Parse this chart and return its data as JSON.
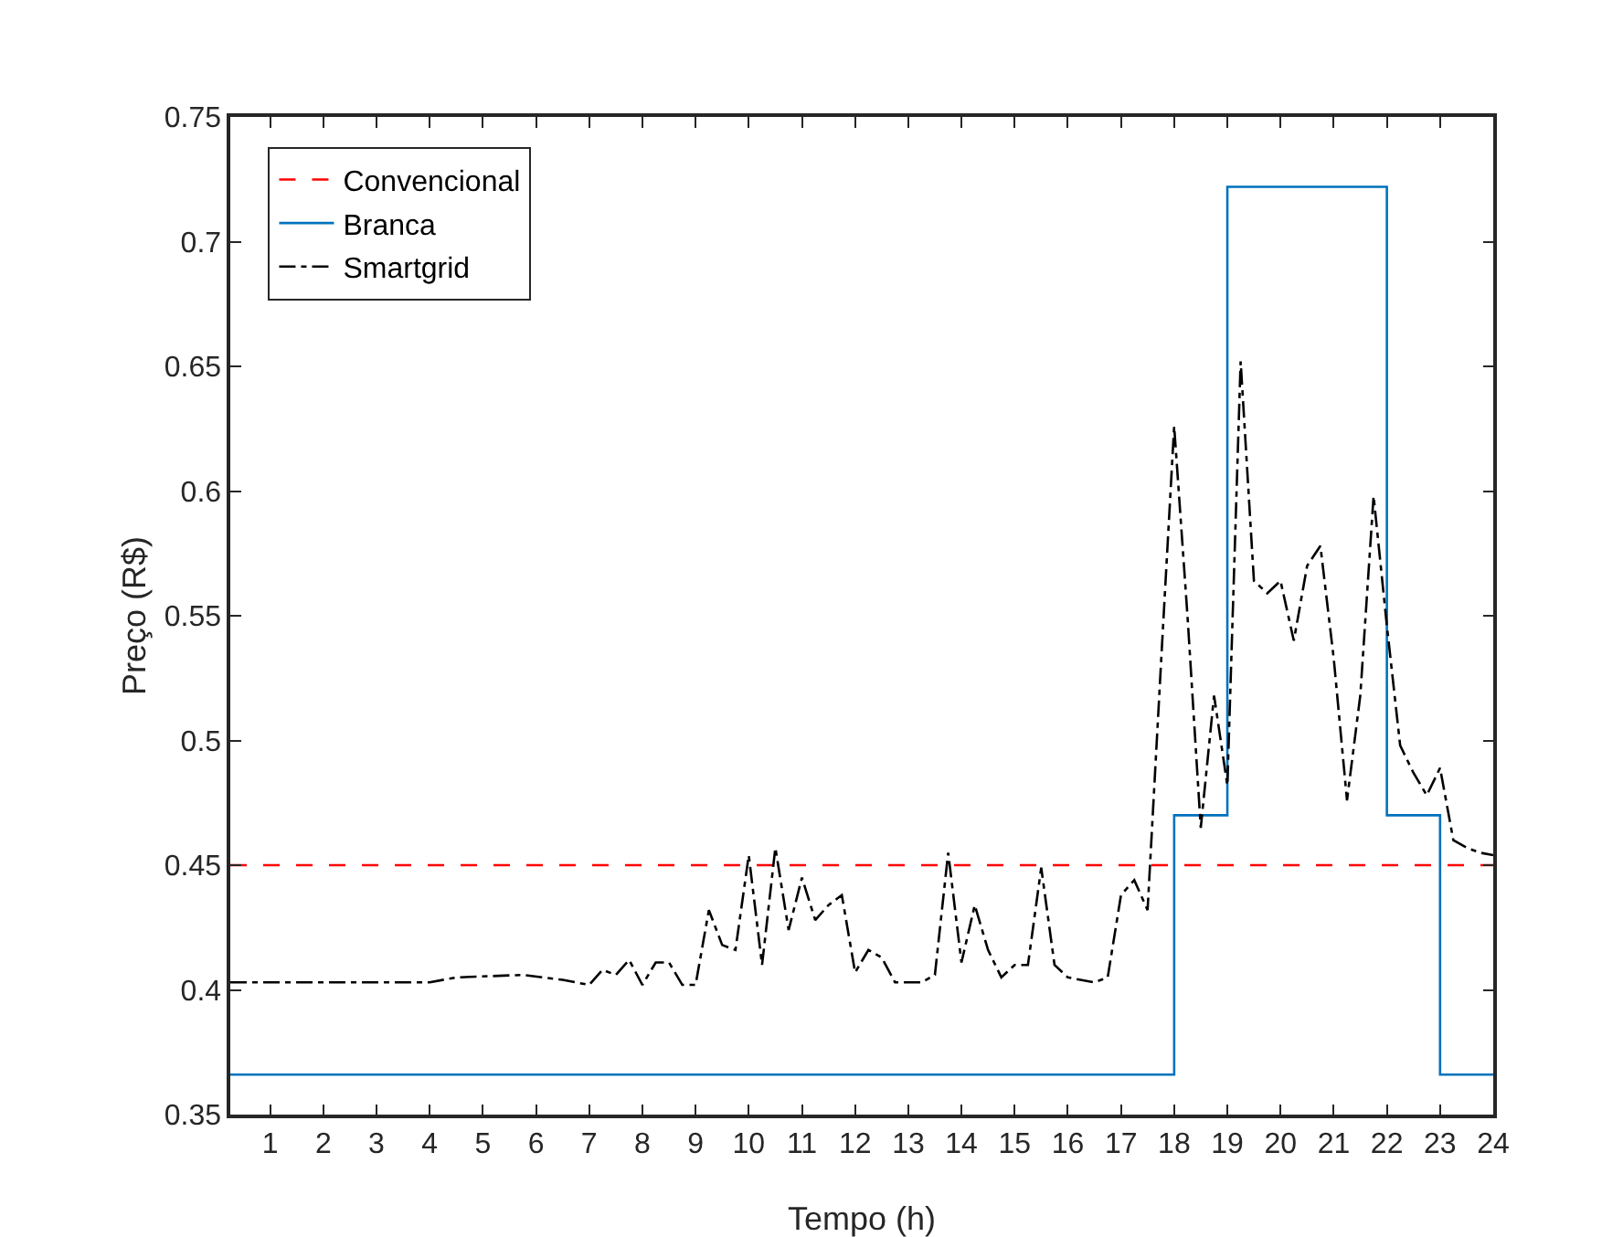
{
  "chart_data": {
    "type": "line",
    "xlabel": "Tempo (h)",
    "ylabel": "Preço (R$)",
    "xlim": [
      0.25,
      24
    ],
    "ylim": [
      0.35,
      0.75
    ],
    "xticks": [
      1,
      2,
      3,
      4,
      5,
      6,
      7,
      8,
      9,
      10,
      11,
      12,
      13,
      14,
      15,
      16,
      17,
      18,
      19,
      20,
      21,
      22,
      23,
      24
    ],
    "yticks": [
      {
        "value": 0.35,
        "label": "0.35"
      },
      {
        "value": 0.4,
        "label": "0.4"
      },
      {
        "value": 0.45,
        "label": "0.45"
      },
      {
        "value": 0.5,
        "label": "0.5"
      },
      {
        "value": 0.55,
        "label": "0.55"
      },
      {
        "value": 0.6,
        "label": "0.6"
      },
      {
        "value": 0.65,
        "label": "0.65"
      },
      {
        "value": 0.7,
        "label": "0.7"
      },
      {
        "value": 0.75,
        "label": "0.75"
      }
    ],
    "grid": false,
    "legend": "top left",
    "marker": "none",
    "series": [
      {
        "name": "Convencional",
        "line_style": "dashed",
        "color": "#ff0000",
        "x": [
          0.25,
          24
        ],
        "values": [
          0.45,
          0.45
        ]
      },
      {
        "name": "Branca",
        "type": "step",
        "line_style": "solid",
        "color": "#0072bd",
        "x": [
          0.25,
          18,
          19,
          22,
          23,
          24
        ],
        "values": [
          0.366,
          0.47,
          0.722,
          0.47,
          0.366,
          0.366
        ]
      },
      {
        "name": "Smartgrid",
        "line_style": "dashdot",
        "color": "#000000",
        "x": [
          0.25,
          4,
          4.5,
          5.75,
          6.5,
          7,
          7.25,
          7.5,
          7.75,
          8,
          8.25,
          8.5,
          8.75,
          9,
          9.25,
          9.5,
          9.75,
          10,
          10.25,
          10.5,
          10.75,
          11,
          11.25,
          11.5,
          11.75,
          12,
          12.25,
          12.5,
          12.75,
          13,
          13.25,
          13.5,
          13.75,
          14,
          14.25,
          14.5,
          14.75,
          15,
          15.25,
          15.5,
          15.75,
          16,
          16.5,
          16.75,
          17,
          17.25,
          17.5,
          17.75,
          18,
          18.25,
          18.5,
          18.75,
          19,
          19.25,
          19.5,
          19.75,
          20,
          20.25,
          20.5,
          20.75,
          21,
          21.25,
          21.5,
          21.75,
          22,
          22.25,
          22.5,
          22.75,
          23,
          23.25,
          23.5,
          23.75,
          24
        ],
        "values": [
          0.403,
          0.403,
          0.405,
          0.406,
          0.404,
          0.402,
          0.408,
          0.406,
          0.412,
          0.402,
          0.411,
          0.411,
          0.402,
          0.402,
          0.432,
          0.418,
          0.416,
          0.454,
          0.41,
          0.457,
          0.424,
          0.445,
          0.428,
          0.434,
          0.438,
          0.407,
          0.416,
          0.413,
          0.403,
          0.403,
          0.403,
          0.406,
          0.455,
          0.411,
          0.434,
          0.416,
          0.405,
          0.41,
          0.41,
          0.449,
          0.41,
          0.405,
          0.403,
          0.405,
          0.438,
          0.444,
          0.432,
          0.53,
          0.626,
          0.55,
          0.465,
          0.518,
          0.482,
          0.652,
          0.564,
          0.559,
          0.564,
          0.54,
          0.57,
          0.578,
          0.533,
          0.476,
          0.518,
          0.598,
          0.546,
          0.498,
          0.487,
          0.478,
          0.489,
          0.46,
          0.457,
          0.455,
          0.454
        ]
      }
    ]
  }
}
